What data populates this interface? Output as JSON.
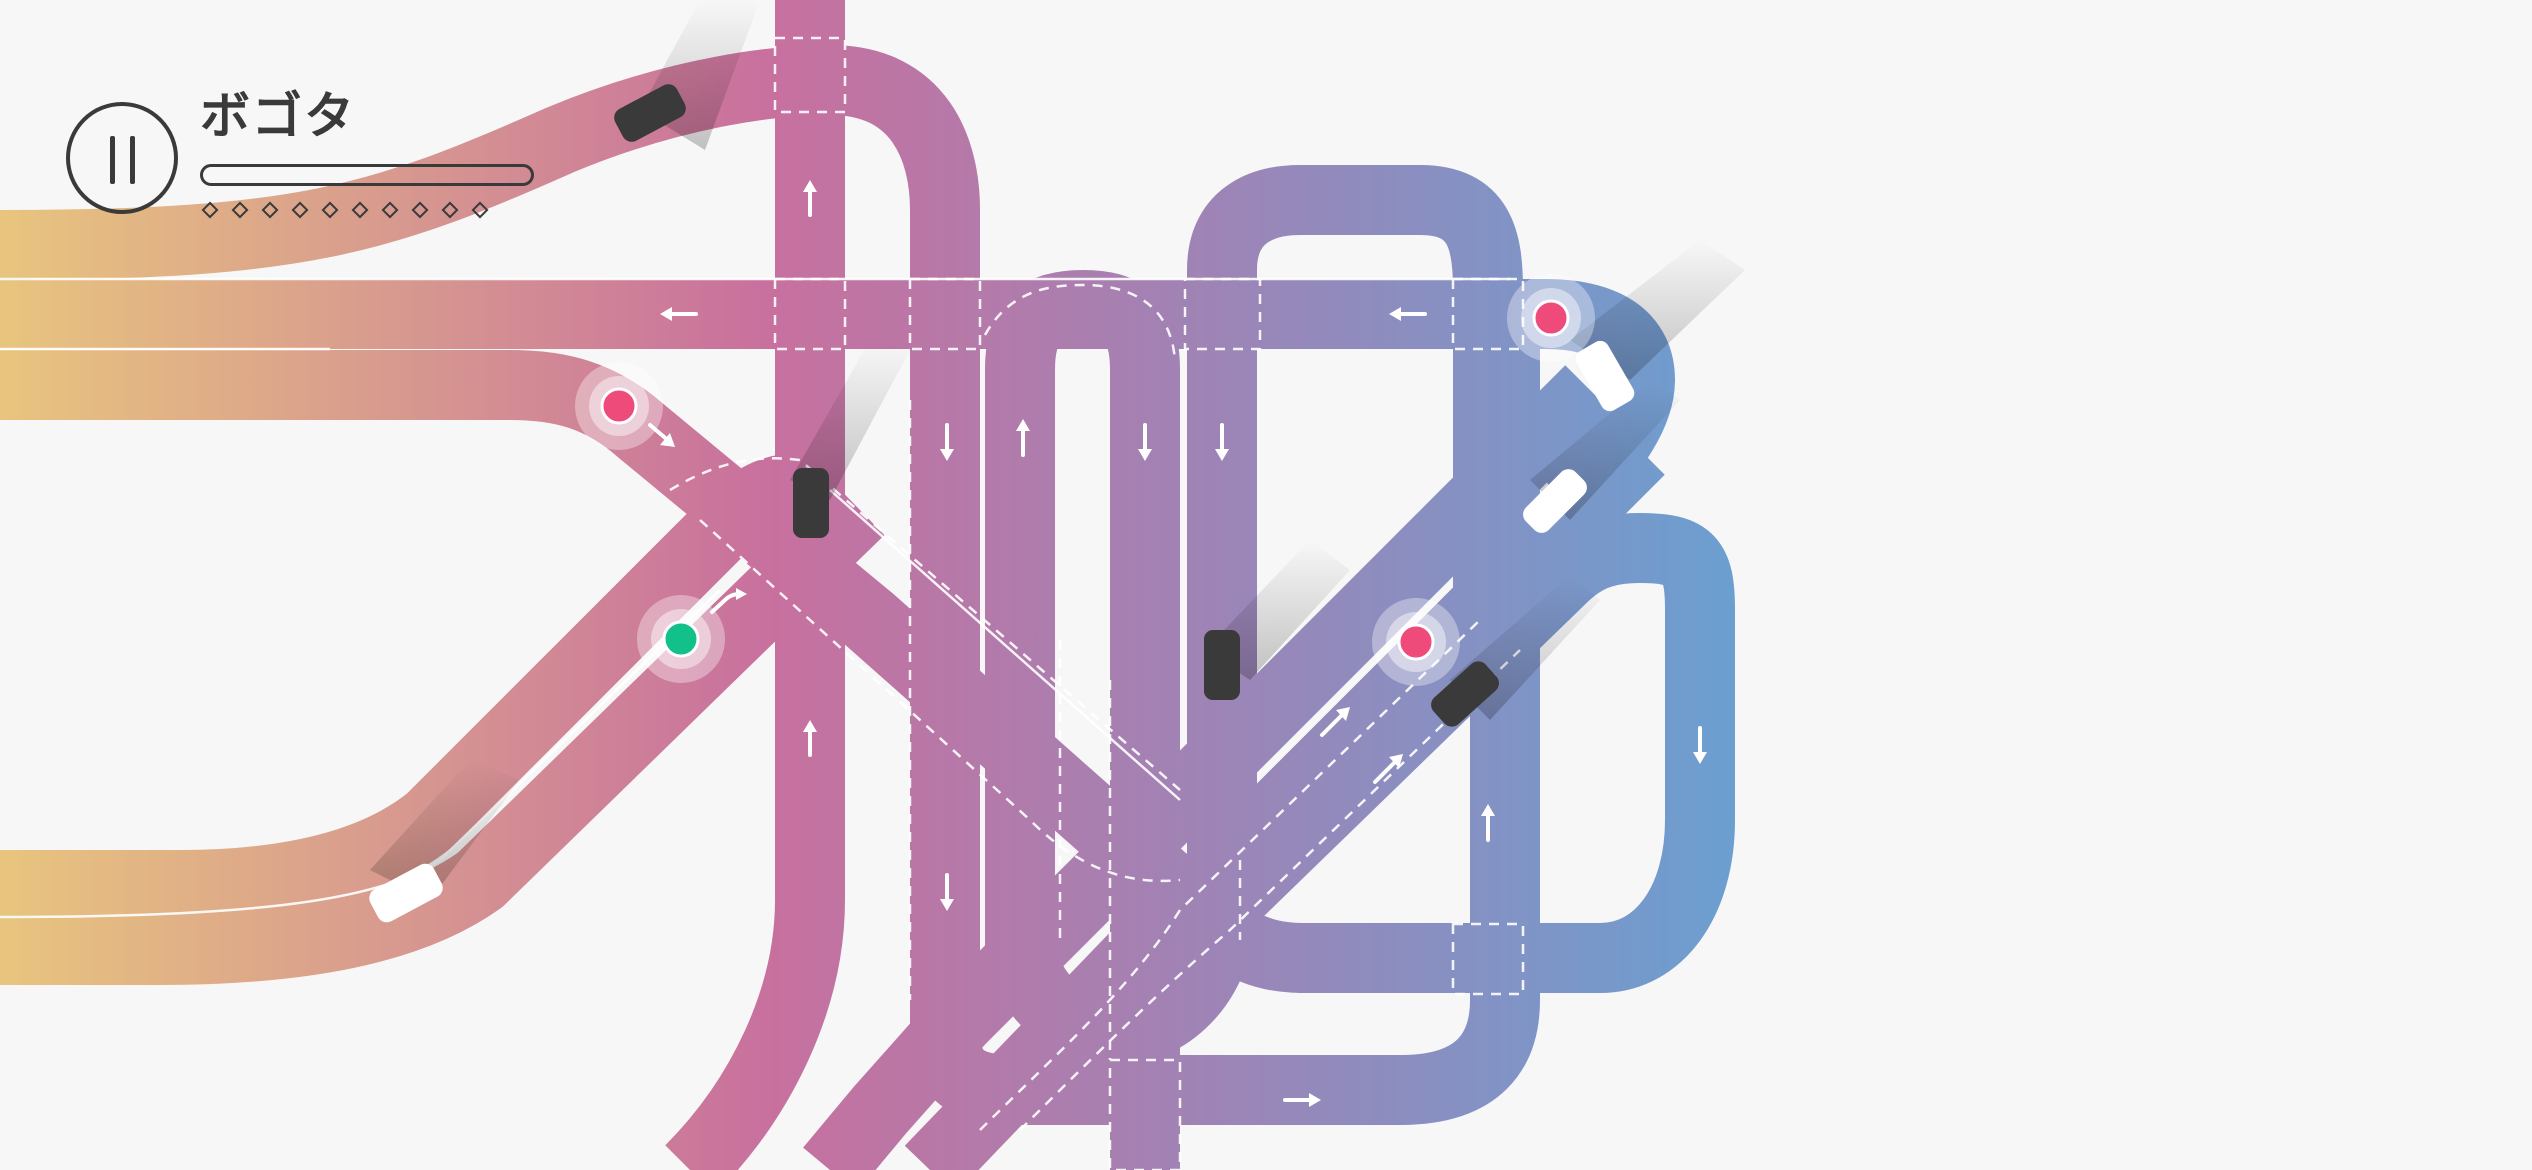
{
  "level": {
    "city_name": "ボゴタ",
    "progress_fraction": 0.0,
    "milestones_total": 10,
    "milestones_reached": 0
  },
  "colors": {
    "road_left": "#e6c27f",
    "road_mid": "#c8709e",
    "road_right": "#6a9fd0",
    "car": "#3a3a3a",
    "car_light": "#ffffff",
    "signal_red": "#ee4a7a",
    "signal_green": "#12c08a",
    "hud": "#3a3a3a"
  },
  "icons": {
    "pause": "pause-icon",
    "direction": "arrow-icon",
    "signal": "traffic-signal-icon",
    "car": "car-icon"
  },
  "signals": [
    {
      "id": "signal-top-right",
      "state": "red"
    },
    {
      "id": "signal-left-upper",
      "state": "red"
    },
    {
      "id": "signal-center-right",
      "state": "red"
    },
    {
      "id": "signal-left-lower",
      "state": "green"
    }
  ]
}
